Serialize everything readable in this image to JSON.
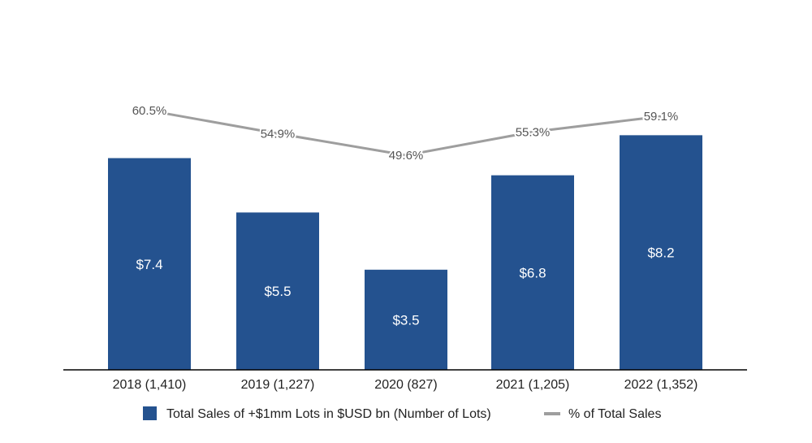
{
  "chart_data": {
    "type": "bar",
    "title": "",
    "xlabel": "",
    "ylabel": "",
    "categories": [
      "2018 (1,410)",
      "2019 (1,227)",
      "2020 (827)",
      "2021 (1,205)",
      "2022 (1,352)"
    ],
    "series": [
      {
        "name": "Total Sales of +$1mm Lots in $USD bn (Number of Lots)",
        "type": "bar",
        "color": "#24528f",
        "values": [
          7.4,
          5.5,
          3.5,
          6.8,
          8.2
        ],
        "labels": [
          "$7.4",
          "$5.5",
          "$3.5",
          "$6.8",
          "$8.2"
        ]
      },
      {
        "name": "% of Total Sales",
        "type": "line",
        "color": "#9e9e9e",
        "values": [
          60.5,
          54.9,
          49.6,
          55.3,
          59.1
        ],
        "labels": [
          "60.5%",
          "54.9%",
          "49.6%",
          "55.3%",
          "59.1%"
        ]
      }
    ],
    "bar_axis_range": [
      0,
      11
    ],
    "line_axis_range": [
      20,
      70
    ],
    "grid": false,
    "legend_position": "bottom"
  }
}
